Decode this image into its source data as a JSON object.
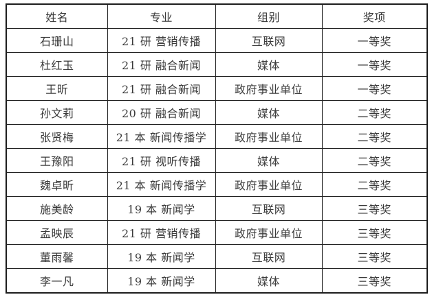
{
  "colors": {
    "border": "#1c1c1c",
    "text": "#3a3a3a",
    "background": "#ffffff"
  },
  "table": {
    "headers": [
      "姓名",
      "专业",
      "组别",
      "奖项"
    ],
    "rows": [
      [
        "石珊山",
        "21 研 营销传播",
        "互联网",
        "一等奖"
      ],
      [
        "杜红玉",
        "21 研 融合新闻",
        "媒体",
        "一等奖"
      ],
      [
        "王昕",
        "21 研 融合新闻",
        "政府事业单位",
        "一等奖"
      ],
      [
        "孙文莉",
        "20 研 融合新闻",
        "媒体",
        "二等奖"
      ],
      [
        "张贤梅",
        "21 本 新闻传播学",
        "政府事业单位",
        "二等奖"
      ],
      [
        "王豫阳",
        "21 研 视听传播",
        "媒体",
        "二等奖"
      ],
      [
        "魏卓昕",
        "21 本 新闻传播学",
        "政府事业单位",
        "二等奖"
      ],
      [
        "施美龄",
        "19 本 新闻学",
        "互联网",
        "三等奖"
      ],
      [
        "孟映辰",
        "21 研 营销传播",
        "政府事业单位",
        "三等奖"
      ],
      [
        "董雨馨",
        "19 本 新闻学",
        "互联网",
        "三等奖"
      ],
      [
        "李一凡",
        "19 本 新闻学",
        "媒体",
        "三等奖"
      ]
    ]
  }
}
